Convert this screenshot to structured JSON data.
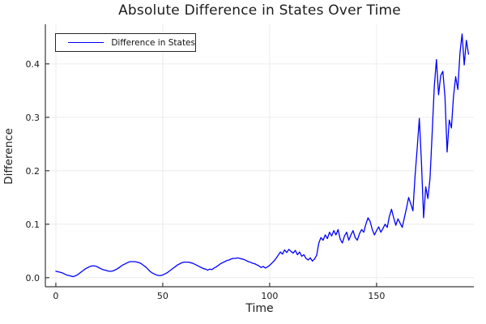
{
  "title": "Absolute Difference in States Over Time",
  "legend": {
    "label": "Difference in States",
    "line_color": "#0000ff"
  },
  "chart_data": {
    "type": "line",
    "title": "Absolute Difference in States Over Time",
    "xlabel": "Time",
    "ylabel": "Difference",
    "legend_position": "top-left",
    "grid": true,
    "xlim": [
      -4.9,
      195.5
    ],
    "ylim": [
      -0.017,
      0.474
    ],
    "xticks": {
      "values": [
        0,
        50,
        100,
        150
      ],
      "labels": [
        "0",
        "50",
        "100",
        "150"
      ]
    },
    "yticks": {
      "values": [
        0.0,
        0.1,
        0.2,
        0.3,
        0.4
      ],
      "labels": [
        "0.0",
        "0.1",
        "0.2",
        "0.3",
        "0.4"
      ]
    },
    "colors": {
      "line": "#0000ff",
      "grid": "#ececec",
      "spine": "#36393b",
      "background": "#ffffff",
      "text": "#1a1a1a"
    },
    "series": [
      {
        "name": "Difference in States",
        "color": "#0000ff",
        "x_start": 0,
        "x_step": 1,
        "values": [
          0.012,
          0.011,
          0.01,
          0.009,
          0.007,
          0.005,
          0.004,
          0.003,
          0.002,
          0.003,
          0.005,
          0.008,
          0.011,
          0.014,
          0.017,
          0.019,
          0.021,
          0.022,
          0.022,
          0.021,
          0.019,
          0.017,
          0.015,
          0.014,
          0.013,
          0.012,
          0.012,
          0.013,
          0.015,
          0.017,
          0.02,
          0.023,
          0.025,
          0.027,
          0.029,
          0.03,
          0.03,
          0.03,
          0.029,
          0.028,
          0.026,
          0.023,
          0.02,
          0.016,
          0.012,
          0.009,
          0.007,
          0.005,
          0.004,
          0.004,
          0.005,
          0.007,
          0.009,
          0.012,
          0.015,
          0.018,
          0.021,
          0.024,
          0.026,
          0.028,
          0.029,
          0.029,
          0.029,
          0.028,
          0.027,
          0.025,
          0.023,
          0.021,
          0.019,
          0.017,
          0.016,
          0.014,
          0.016,
          0.015,
          0.018,
          0.02,
          0.023,
          0.026,
          0.028,
          0.03,
          0.032,
          0.033,
          0.035,
          0.036,
          0.036,
          0.037,
          0.036,
          0.035,
          0.034,
          0.032,
          0.03,
          0.029,
          0.027,
          0.026,
          0.024,
          0.022,
          0.019,
          0.021,
          0.018,
          0.02,
          0.023,
          0.027,
          0.031,
          0.036,
          0.042,
          0.048,
          0.044,
          0.052,
          0.047,
          0.053,
          0.049,
          0.046,
          0.051,
          0.043,
          0.048,
          0.04,
          0.043,
          0.036,
          0.033,
          0.037,
          0.031,
          0.035,
          0.042,
          0.065,
          0.075,
          0.07,
          0.08,
          0.073,
          0.085,
          0.078,
          0.088,
          0.08,
          0.09,
          0.072,
          0.065,
          0.078,
          0.085,
          0.07,
          0.08,
          0.088,
          0.075,
          0.07,
          0.082,
          0.09,
          0.085,
          0.1,
          0.112,
          0.105,
          0.09,
          0.08,
          0.088,
          0.095,
          0.085,
          0.092,
          0.1,
          0.094,
          0.115,
          0.128,
          0.112,
          0.098,
          0.11,
          0.102,
          0.094,
          0.112,
          0.13,
          0.15,
          0.138,
          0.125,
          0.19,
          0.242,
          0.298,
          0.215,
          0.112,
          0.17,
          0.148,
          0.186,
          0.27,
          0.358,
          0.408,
          0.342,
          0.378,
          0.386,
          0.338,
          0.235,
          0.295,
          0.28,
          0.34,
          0.376,
          0.352,
          0.42,
          0.456,
          0.398,
          0.444,
          0.418
        ]
      }
    ]
  }
}
